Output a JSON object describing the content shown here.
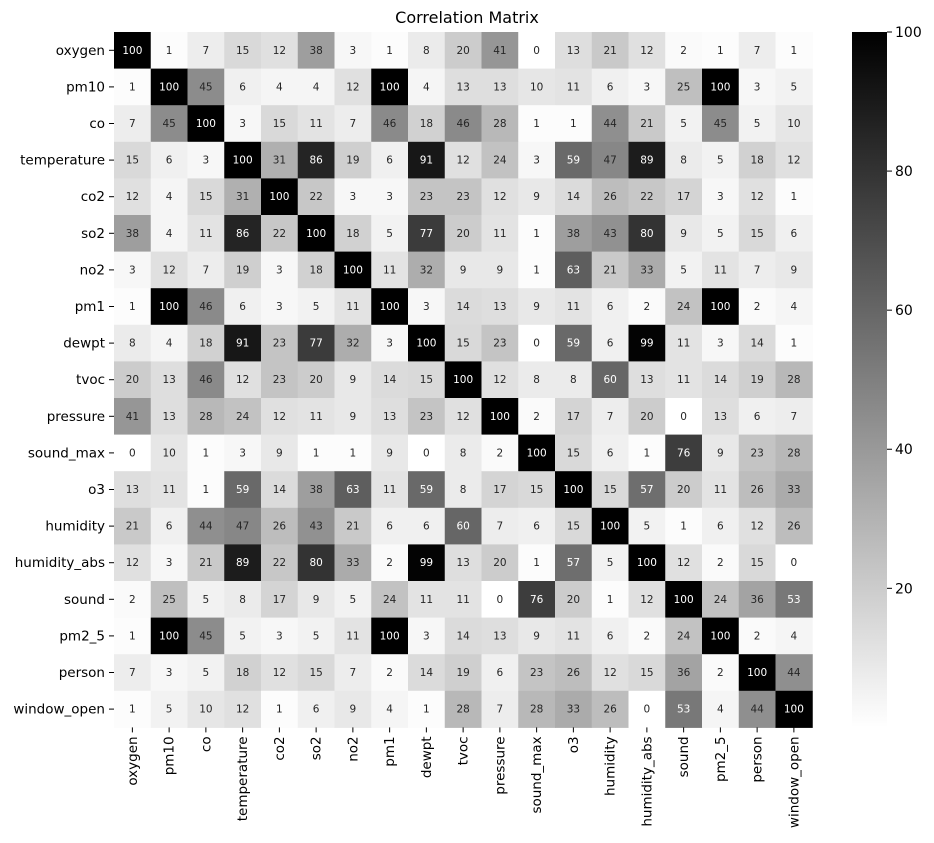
{
  "chart_data": {
    "type": "heatmap",
    "title": "Correlation Matrix",
    "colormap": "Greys",
    "vmin": 0,
    "vmax": 100,
    "low_color": "#ffffff",
    "high_color": "#000000",
    "labels": [
      "oxygen",
      "pm10",
      "co",
      "temperature",
      "co2",
      "so2",
      "no2",
      "pm1",
      "dewpt",
      "tvoc",
      "pressure",
      "sound_max",
      "o3",
      "humidity",
      "humidity_abs",
      "sound",
      "pm2_5",
      "person",
      "window_open"
    ],
    "values": [
      [
        100,
        1,
        7,
        15,
        12,
        38,
        3,
        1,
        8,
        20,
        41,
        0,
        13,
        21,
        12,
        2,
        1,
        7,
        1
      ],
      [
        1,
        100,
        45,
        6,
        4,
        4,
        12,
        100,
        4,
        13,
        13,
        10,
        11,
        6,
        3,
        25,
        100,
        3,
        5
      ],
      [
        7,
        45,
        100,
        3,
        15,
        11,
        7,
        46,
        18,
        46,
        28,
        1,
        1,
        44,
        21,
        5,
        45,
        5,
        10
      ],
      [
        15,
        6,
        3,
        100,
        31,
        86,
        19,
        6,
        91,
        12,
        24,
        3,
        59,
        47,
        89,
        8,
        5,
        18,
        12
      ],
      [
        12,
        4,
        15,
        31,
        100,
        22,
        3,
        3,
        23,
        23,
        12,
        9,
        14,
        26,
        22,
        17,
        3,
        12,
        1
      ],
      [
        38,
        4,
        11,
        86,
        22,
        100,
        18,
        5,
        77,
        20,
        11,
        1,
        38,
        43,
        80,
        9,
        5,
        15,
        6
      ],
      [
        3,
        12,
        7,
        19,
        3,
        18,
        100,
        11,
        32,
        9,
        9,
        1,
        63,
        21,
        33,
        5,
        11,
        7,
        9
      ],
      [
        1,
        100,
        46,
        6,
        3,
        5,
        11,
        100,
        3,
        14,
        13,
        9,
        11,
        6,
        2,
        24,
        100,
        2,
        4
      ],
      [
        8,
        4,
        18,
        91,
        23,
        77,
        32,
        3,
        100,
        15,
        23,
        0,
        59,
        6,
        99,
        11,
        3,
        14,
        1
      ],
      [
        20,
        13,
        46,
        12,
        23,
        20,
        9,
        14,
        15,
        100,
        12,
        8,
        8,
        60,
        13,
        11,
        14,
        19,
        28
      ],
      [
        41,
        13,
        28,
        24,
        12,
        11,
        9,
        13,
        23,
        12,
        100,
        2,
        17,
        7,
        20,
        0,
        13,
        6,
        7
      ],
      [
        0,
        10,
        1,
        3,
        9,
        1,
        1,
        9,
        0,
        8,
        2,
        100,
        15,
        6,
        1,
        76,
        9,
        23,
        28
      ],
      [
        13,
        11,
        1,
        59,
        14,
        38,
        63,
        11,
        59,
        8,
        17,
        15,
        100,
        15,
        57,
        20,
        11,
        26,
        33
      ],
      [
        21,
        6,
        44,
        47,
        26,
        43,
        21,
        6,
        6,
        60,
        7,
        6,
        15,
        100,
        5,
        1,
        6,
        12,
        26
      ],
      [
        12,
        3,
        21,
        89,
        22,
        80,
        33,
        2,
        99,
        13,
        20,
        1,
        57,
        5,
        100,
        12,
        2,
        15,
        0
      ],
      [
        2,
        25,
        5,
        8,
        17,
        9,
        5,
        24,
        11,
        11,
        0,
        76,
        20,
        1,
        12,
        100,
        24,
        36,
        53
      ],
      [
        1,
        100,
        45,
        5,
        3,
        5,
        11,
        100,
        3,
        14,
        13,
        9,
        11,
        6,
        2,
        24,
        100,
        2,
        4
      ],
      [
        7,
        3,
        5,
        18,
        12,
        15,
        7,
        2,
        14,
        19,
        6,
        23,
        26,
        12,
        15,
        36,
        2,
        100,
        44
      ],
      [
        1,
        5,
        10,
        12,
        1,
        6,
        9,
        4,
        1,
        28,
        7,
        28,
        33,
        26,
        0,
        53,
        4,
        44,
        100
      ]
    ],
    "colorbar_ticks": [
      20,
      40,
      60,
      80,
      100
    ],
    "annotate": true
  }
}
